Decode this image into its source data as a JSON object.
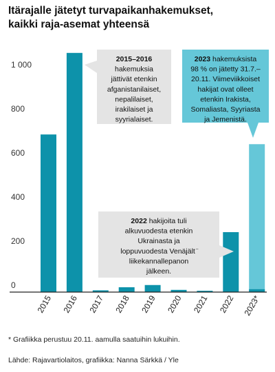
{
  "title_lines": [
    "Itärajalle jätetyt turvapaikanhakemukset,",
    "kaikki raja-asemat yhteensä"
  ],
  "chart_data": {
    "type": "bar",
    "categories": [
      "2015",
      "2016",
      "2017",
      "2018",
      "2019",
      "2020",
      "2021",
      "2022",
      "2023*"
    ],
    "values": [
      715,
      1085,
      8,
      22,
      32,
      10,
      6,
      272,
      671
    ],
    "highlight_category": "2023*",
    "highlight_stack_bottom": 13,
    "yticks": [
      0,
      200,
      400,
      600,
      800,
      1000
    ],
    "yticklabels": [
      "0",
      "200",
      "400",
      "600",
      "800",
      "1 000"
    ],
    "ylim": [
      0,
      1200
    ],
    "grid": false,
    "colors": {
      "bar": "#0d92aa",
      "highlight": "#65c7d8",
      "callout_gray": "#e4e4e4",
      "callout_blue": "#65c7d8"
    }
  },
  "callouts": [
    {
      "id": "2015-2016",
      "lines": [
        [
          {
            "t": "2015–2016",
            "b": true
          }
        ],
        [
          {
            "t": "hakemuksia",
            "b": false
          }
        ],
        [
          {
            "t": "jättivät etenkin",
            "b": false
          }
        ],
        [
          {
            "t": "afganistanilaiset,",
            "b": false
          }
        ],
        [
          {
            "t": "nepalilaiset,",
            "b": false
          }
        ],
        [
          {
            "t": "irakilaiset ja",
            "b": false
          }
        ],
        [
          {
            "t": "syyrialaiset.",
            "b": false
          }
        ]
      ]
    },
    {
      "id": "2023",
      "lines": [
        [
          {
            "t": "2023",
            "b": true
          },
          {
            "t": " hakemuksista",
            "b": false
          }
        ],
        [
          {
            "t": "98 % on jätetty 31.7.–",
            "b": false
          }
        ],
        [
          {
            "t": "20.11. Viimeviikkoiset",
            "b": false
          }
        ],
        [
          {
            "t": "hakijat ovat olleet",
            "b": false
          }
        ],
        [
          {
            "t": "etenkin Irakista,",
            "b": false
          }
        ],
        [
          {
            "t": "Somaliasta, Syyriasta",
            "b": false
          }
        ],
        [
          {
            "t": "ja Jemenistä.",
            "b": false
          }
        ]
      ]
    },
    {
      "id": "2022",
      "lines": [
        [
          {
            "t": "2022",
            "b": true
          },
          {
            "t": " hakijoita tuli",
            "b": false
          }
        ],
        [
          {
            "t": "alkuvuodesta etenkin",
            "b": false
          }
        ],
        [
          {
            "t": "Ukrainasta ja",
            "b": false
          }
        ],
        [
          {
            "t": "loppuvuodesta Venäjält ̈",
            "b": false
          }
        ],
        [
          {
            "t": "liikekannallepanon",
            "b": false
          }
        ],
        [
          {
            "t": "jälkeen.",
            "b": false
          }
        ]
      ]
    }
  ],
  "footnote": "* Grafiikka perustuu 20.11. aamulla saatuihin lukuihin.",
  "source": "Lähde: Rajavartiolaitos, grafiikka: Nanna Särkkä / Yle"
}
